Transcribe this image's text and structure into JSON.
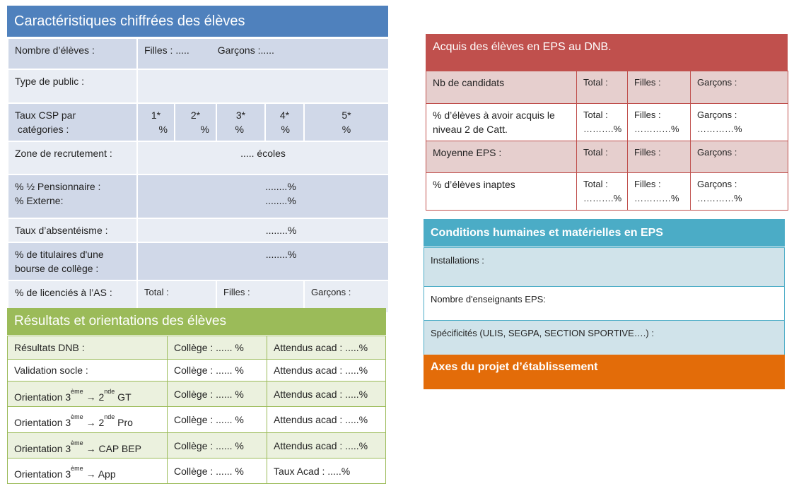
{
  "caracteristiques": {
    "title": "Caractéristiques  chiffrées des élèves",
    "nombre": {
      "label": "Nombre d’élèves :",
      "filles": "Filles : .....",
      "garcons": "Garçons :....."
    },
    "type_public": {
      "label": "Type de public :"
    },
    "csp": {
      "label": "Taux CSP par",
      "label2": "catégories :",
      "cats": [
        "1*",
        "2*",
        "3*",
        "4*",
        "5*"
      ],
      "unit": "%"
    },
    "zone": {
      "label": "Zone de recrutement :",
      "value": "..... écoles"
    },
    "pension": {
      "label1": "%   ½ Pensionnaire :",
      "label2": "% Externe:",
      "value1": "........%",
      "value2": "........%"
    },
    "absenteisme": {
      "label": "Taux d’absentéisme :",
      "value": "........%"
    },
    "bourse": {
      "label1": "%   de titulaires d'une",
      "label2": "bourse de collège :",
      "value": "........%"
    },
    "licencies": {
      "label": "% de licenciés à l’AS :",
      "total": "Total :",
      "filles": "Filles :",
      "garcons": "Garçons :"
    }
  },
  "resultats": {
    "title": "Résultats et orientations des élèves",
    "rows": [
      {
        "label": "Résultats DNB :",
        "college": "Collège :  ...... %",
        "acad": "Attendus acad :   .....%"
      },
      {
        "label": "Validation socle :",
        "college": "Collège :  ...... %",
        "acad": "Attendus acad :   .....%"
      },
      {
        "label": "Orientation 3",
        "sup": "ème",
        "arrow": " → 2",
        "sup2": "nde",
        "rest": " GT",
        "college": "Collège :  ...... %",
        "acad": "Attendus acad :  .....%"
      },
      {
        "label": "Orientation 3",
        "sup": "ème",
        "arrow": " → 2",
        "sup2": "nde",
        "rest": " Pro",
        "college": "Collège :  ...... %",
        "acad": "Attendus acad :  .....%"
      },
      {
        "label": "Orientation 3",
        "sup": "ème",
        "arrow": " → CAP BEP",
        "college": "Collège :  ...... %",
        "acad": "Attendus acad :  .....%"
      },
      {
        "label": "Orientation 3",
        "sup": "ème",
        "arrow": " → App",
        "college": "Collège :  ...... %",
        "acad": "Taux Acad :  .....%"
      }
    ]
  },
  "acquis": {
    "title": "Acquis des élèves en EPS au DNB.",
    "rows": [
      {
        "label": "Nb de candidats",
        "total": "Total :",
        "filles": "Filles :",
        "garcons": "Garçons :"
      },
      {
        "label": "% d’élèves à avoir acquis le niveau 2 de Catt.",
        "total": "Total :",
        "filles": "Filles :",
        "garcons": "Garçons :",
        "tv": "……….%",
        "fv": "…………%",
        "gv": "…………%"
      },
      {
        "label": "Moyenne EPS :",
        "total": "Total :",
        "filles": "Filles :",
        "garcons": "Garçons :"
      },
      {
        "label": "% d’élèves inaptes",
        "total": "Total :",
        "filles": "Filles :",
        "garcons": "Garçons :",
        "tv": "……….%",
        "fv": "…………%",
        "gv": "…………%"
      }
    ]
  },
  "conditions": {
    "title": "Conditions humaines et matérielles  en EPS",
    "rows": [
      "Installations :",
      "Nombre d'enseignants EPS:",
      "Spécificités (ULIS, SEGPA, SECTION SPORTIVE….) :"
    ]
  },
  "axes": {
    "title": "Axes du projet d’établissement"
  },
  "colors": {
    "blue": "#4f81bd",
    "green": "#9bbb59",
    "red": "#c0504d",
    "teal": "#4bacc6",
    "orange": "#e36c09"
  }
}
